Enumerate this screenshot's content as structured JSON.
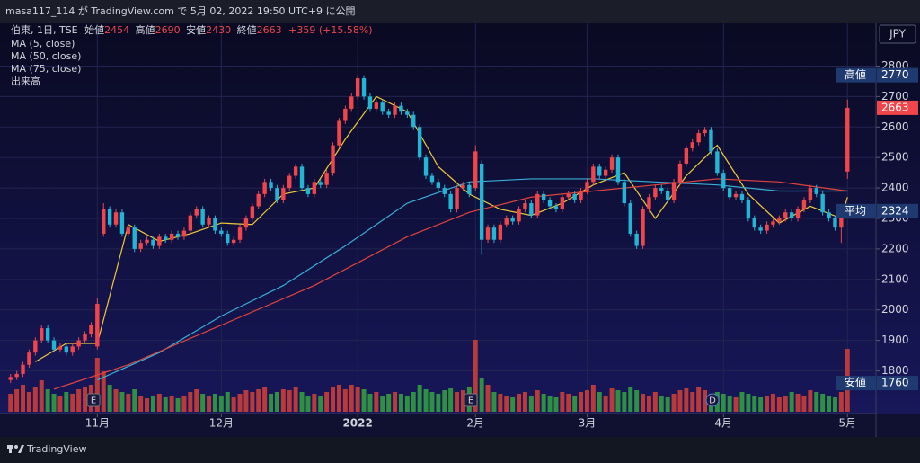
{
  "header": {
    "text": "masa117_114 が TradingView.com で 5月 02, 2022 19:50 UTC+9 に公開"
  },
  "footer": {
    "brand": "TradingView"
  },
  "chart_data": {
    "type": "candlestick",
    "symbol": "伯東, 1日, TSE",
    "ohlc_labels": [
      "始値",
      "高値",
      "安値",
      "終値"
    ],
    "change_label": "+359 (+15.58%)",
    "currency": "JPY",
    "up_color": "#f0454a",
    "down_color": "#22b5d4",
    "volume_up_color": "#b83a3a",
    "volume_down_color": "#2f8f42",
    "volume_name": "出来高",
    "ylim": [
      1660,
      2940
    ],
    "yticks": [
      1800,
      1900,
      2000,
      2100,
      2200,
      2300,
      2400,
      2500,
      2600,
      2700,
      2800
    ],
    "vlim": [
      0,
      100
    ],
    "grid": true,
    "xlim": [
      -1.7,
      139.6
    ],
    "xticks": [
      {
        "value": 14,
        "label": "11月"
      },
      {
        "value": 34,
        "label": "12月"
      },
      {
        "value": 56,
        "label": "2022"
      },
      {
        "value": 75,
        "label": "2月"
      },
      {
        "value": 93,
        "label": "3月"
      },
      {
        "value": 115,
        "label": "4月"
      },
      {
        "value": 135,
        "label": "5月"
      }
    ],
    "price_labels": [
      {
        "label": "高値",
        "value": 2770
      },
      {
        "label": "平均",
        "value": 2324
      },
      {
        "label": "安値",
        "value": 1760
      }
    ],
    "events": [
      "E",
      "E",
      "D"
    ],
    "ohlc": [
      [
        1770,
        1790,
        1760,
        1780
      ],
      [
        1780,
        1800,
        1770,
        1790
      ],
      [
        1790,
        1830,
        1780,
        1820
      ],
      [
        1820,
        1870,
        1810,
        1860
      ],
      [
        1860,
        1910,
        1850,
        1900
      ],
      [
        1900,
        1950,
        1890,
        1940
      ],
      [
        1940,
        1950,
        1890,
        1900
      ],
      [
        1900,
        1910,
        1860,
        1870
      ],
      [
        1870,
        1890,
        1860,
        1880
      ],
      [
        1880,
        1890,
        1850,
        1860
      ],
      [
        1860,
        1890,
        1850,
        1880
      ],
      [
        1880,
        1910,
        1870,
        1900
      ],
      [
        1900,
        1930,
        1890,
        1920
      ],
      [
        1920,
        1960,
        1910,
        1950
      ],
      [
        1880,
        2040,
        1870,
        2020
      ],
      [
        2250,
        2350,
        2240,
        2330
      ],
      [
        2330,
        2340,
        2270,
        2280
      ],
      [
        2280,
        2330,
        2270,
        2320
      ],
      [
        2320,
        2330,
        2240,
        2250
      ],
      [
        2250,
        2280,
        2240,
        2270
      ],
      [
        2270,
        2280,
        2190,
        2200
      ],
      [
        2200,
        2230,
        2190,
        2220
      ],
      [
        2220,
        2240,
        2210,
        2230
      ],
      [
        2230,
        2240,
        2200,
        2210
      ],
      [
        2210,
        2250,
        2200,
        2240
      ],
      [
        2240,
        2250,
        2220,
        2230
      ],
      [
        2230,
        2260,
        2220,
        2250
      ],
      [
        2250,
        2260,
        2230,
        2240
      ],
      [
        2240,
        2270,
        2230,
        2260
      ],
      [
        2260,
        2320,
        2250,
        2310
      ],
      [
        2310,
        2340,
        2300,
        2330
      ],
      [
        2330,
        2340,
        2270,
        2280
      ],
      [
        2280,
        2310,
        2270,
        2300
      ],
      [
        2300,
        2310,
        2250,
        2260
      ],
      [
        2260,
        2270,
        2240,
        2250
      ],
      [
        2250,
        2260,
        2210,
        2220
      ],
      [
        2220,
        2240,
        2210,
        2230
      ],
      [
        2230,
        2280,
        2220,
        2270
      ],
      [
        2270,
        2310,
        2260,
        2300
      ],
      [
        2300,
        2350,
        2290,
        2340
      ],
      [
        2340,
        2390,
        2330,
        2380
      ],
      [
        2380,
        2430,
        2370,
        2420
      ],
      [
        2420,
        2430,
        2390,
        2400
      ],
      [
        2400,
        2410,
        2350,
        2360
      ],
      [
        2360,
        2410,
        2350,
        2400
      ],
      [
        2400,
        2450,
        2390,
        2440
      ],
      [
        2440,
        2480,
        2430,
        2470
      ],
      [
        2470,
        2480,
        2390,
        2400
      ],
      [
        2400,
        2410,
        2370,
        2380
      ],
      [
        2380,
        2430,
        2370,
        2420
      ],
      [
        2420,
        2430,
        2400,
        2410
      ],
      [
        2410,
        2460,
        2400,
        2450
      ],
      [
        2450,
        2550,
        2440,
        2540
      ],
      [
        2540,
        2630,
        2530,
        2620
      ],
      [
        2620,
        2670,
        2610,
        2660
      ],
      [
        2660,
        2710,
        2650,
        2700
      ],
      [
        2700,
        2770,
        2690,
        2760
      ],
      [
        2760,
        2770,
        2690,
        2700
      ],
      [
        2700,
        2710,
        2650,
        2660
      ],
      [
        2660,
        2690,
        2650,
        2680
      ],
      [
        2680,
        2690,
        2640,
        2650
      ],
      [
        2650,
        2660,
        2630,
        2640
      ],
      [
        2640,
        2680,
        2630,
        2670
      ],
      [
        2670,
        2680,
        2640,
        2650
      ],
      [
        2650,
        2660,
        2630,
        2640
      ],
      [
        2640,
        2650,
        2590,
        2600
      ],
      [
        2600,
        2610,
        2490,
        2500
      ],
      [
        2500,
        2510,
        2430,
        2440
      ],
      [
        2440,
        2450,
        2410,
        2420
      ],
      [
        2420,
        2430,
        2390,
        2400
      ],
      [
        2400,
        2410,
        2370,
        2380
      ],
      [
        2380,
        2390,
        2320,
        2330
      ],
      [
        2330,
        2410,
        2320,
        2400
      ],
      [
        2400,
        2420,
        2390,
        2410
      ],
      [
        2410,
        2420,
        2370,
        2380
      ],
      [
        2400,
        2540,
        2390,
        2520
      ],
      [
        2480,
        2490,
        2180,
        2230
      ],
      [
        2230,
        2280,
        2220,
        2270
      ],
      [
        2270,
        2280,
        2220,
        2230
      ],
      [
        2230,
        2290,
        2220,
        2280
      ],
      [
        2280,
        2310,
        2270,
        2300
      ],
      [
        2300,
        2310,
        2280,
        2290
      ],
      [
        2290,
        2340,
        2280,
        2330
      ],
      [
        2330,
        2360,
        2320,
        2350
      ],
      [
        2350,
        2360,
        2300,
        2310
      ],
      [
        2310,
        2390,
        2300,
        2380
      ],
      [
        2380,
        2390,
        2350,
        2360
      ],
      [
        2360,
        2370,
        2330,
        2340
      ],
      [
        2340,
        2350,
        2320,
        2330
      ],
      [
        2330,
        2380,
        2320,
        2370
      ],
      [
        2370,
        2390,
        2360,
        2380
      ],
      [
        2380,
        2390,
        2350,
        2360
      ],
      [
        2360,
        2400,
        2350,
        2390
      ],
      [
        2390,
        2430,
        2380,
        2420
      ],
      [
        2420,
        2480,
        2410,
        2470
      ],
      [
        2470,
        2480,
        2430,
        2440
      ],
      [
        2440,
        2470,
        2430,
        2460
      ],
      [
        2460,
        2510,
        2450,
        2500
      ],
      [
        2500,
        2510,
        2410,
        2420
      ],
      [
        2420,
        2430,
        2340,
        2350
      ],
      [
        2350,
        2360,
        2240,
        2250
      ],
      [
        2250,
        2260,
        2200,
        2210
      ],
      [
        2210,
        2340,
        2200,
        2330
      ],
      [
        2330,
        2380,
        2320,
        2370
      ],
      [
        2370,
        2410,
        2360,
        2400
      ],
      [
        2400,
        2410,
        2380,
        2390
      ],
      [
        2390,
        2400,
        2350,
        2360
      ],
      [
        2360,
        2430,
        2350,
        2420
      ],
      [
        2420,
        2490,
        2410,
        2480
      ],
      [
        2480,
        2540,
        2470,
        2530
      ],
      [
        2530,
        2560,
        2520,
        2550
      ],
      [
        2550,
        2590,
        2540,
        2580
      ],
      [
        2580,
        2600,
        2570,
        2590
      ],
      [
        2590,
        2600,
        2510,
        2520
      ],
      [
        2520,
        2530,
        2440,
        2450
      ],
      [
        2450,
        2460,
        2390,
        2400
      ],
      [
        2400,
        2410,
        2360,
        2370
      ],
      [
        2370,
        2390,
        2360,
        2380
      ],
      [
        2380,
        2390,
        2350,
        2360
      ],
      [
        2360,
        2370,
        2290,
        2300
      ],
      [
        2300,
        2310,
        2260,
        2270
      ],
      [
        2270,
        2280,
        2250,
        2260
      ],
      [
        2260,
        2290,
        2250,
        2280
      ],
      [
        2280,
        2300,
        2270,
        2290
      ],
      [
        2290,
        2310,
        2280,
        2300
      ],
      [
        2300,
        2330,
        2290,
        2320
      ],
      [
        2320,
        2330,
        2290,
        2300
      ],
      [
        2300,
        2340,
        2290,
        2330
      ],
      [
        2330,
        2370,
        2320,
        2360
      ],
      [
        2360,
        2410,
        2350,
        2400
      ],
      [
        2400,
        2410,
        2370,
        2380
      ],
      [
        2380,
        2390,
        2310,
        2320
      ],
      [
        2320,
        2330,
        2290,
        2300
      ],
      [
        2300,
        2310,
        2260,
        2270
      ],
      [
        2270,
        2310,
        2220,
        2304
      ],
      [
        2454,
        2690,
        2430,
        2663
      ]
    ],
    "volume": [
      20,
      25,
      30,
      22,
      28,
      35,
      25,
      20,
      18,
      22,
      20,
      25,
      28,
      30,
      60,
      45,
      30,
      25,
      22,
      20,
      25,
      18,
      15,
      18,
      20,
      16,
      18,
      15,
      17,
      22,
      25,
      20,
      18,
      20,
      18,
      22,
      16,
      20,
      24,
      22,
      25,
      28,
      20,
      22,
      25,
      24,
      28,
      22,
      18,
      20,
      18,
      22,
      28,
      30,
      25,
      30,
      28,
      25,
      20,
      22,
      18,
      20,
      22,
      20,
      18,
      22,
      30,
      25,
      22,
      20,
      24,
      26,
      22,
      24,
      28,
      80,
      38,
      30,
      22,
      20,
      18,
      16,
      20,
      22,
      18,
      24,
      20,
      18,
      16,
      22,
      20,
      18,
      22,
      24,
      30,
      22,
      18,
      26,
      24,
      22,
      28,
      24,
      20,
      18,
      22,
      18,
      16,
      20,
      24,
      26,
      22,
      28,
      24,
      20,
      22,
      20,
      18,
      16,
      22,
      20,
      18,
      16,
      18,
      20,
      16,
      18,
      22,
      20,
      18,
      24,
      22,
      20,
      18,
      16,
      22,
      70
    ],
    "ma": [
      {
        "name": "MA (5, close)",
        "color": "#f0c93a",
        "x": [
          4,
          9,
          14,
          19,
          24,
          29,
          34,
          39,
          44,
          49,
          54,
          59,
          64,
          69,
          74,
          79,
          84,
          89,
          94,
          99,
          104,
          109,
          114,
          119,
          124,
          129,
          134,
          135
        ],
        "values": [
          1830,
          1890,
          1890,
          2280,
          2225,
          2250,
          2285,
          2280,
          2380,
          2400,
          2560,
          2700,
          2650,
          2470,
          2380,
          2330,
          2310,
          2350,
          2410,
          2450,
          2300,
          2440,
          2540,
          2380,
          2285,
          2340,
          2300,
          2370
        ]
      },
      {
        "name": "MA (50, close)",
        "color": "#3aaed6",
        "x": [
          14,
          24,
          34,
          44,
          54,
          64,
          74,
          84,
          94,
          104,
          114,
          124,
          135
        ],
        "values": [
          1770,
          1860,
          1980,
          2080,
          2210,
          2350,
          2420,
          2430,
          2430,
          2420,
          2410,
          2390,
          2390
        ]
      },
      {
        "name": "MA (75, close)",
        "color": "#e0443c",
        "x": [
          7,
          19,
          34,
          49,
          64,
          74,
          84,
          94,
          104,
          114,
          124,
          135
        ],
        "values": [
          1740,
          1820,
          1950,
          2080,
          2240,
          2320,
          2370,
          2390,
          2410,
          2430,
          2420,
          2390
        ]
      }
    ]
  }
}
